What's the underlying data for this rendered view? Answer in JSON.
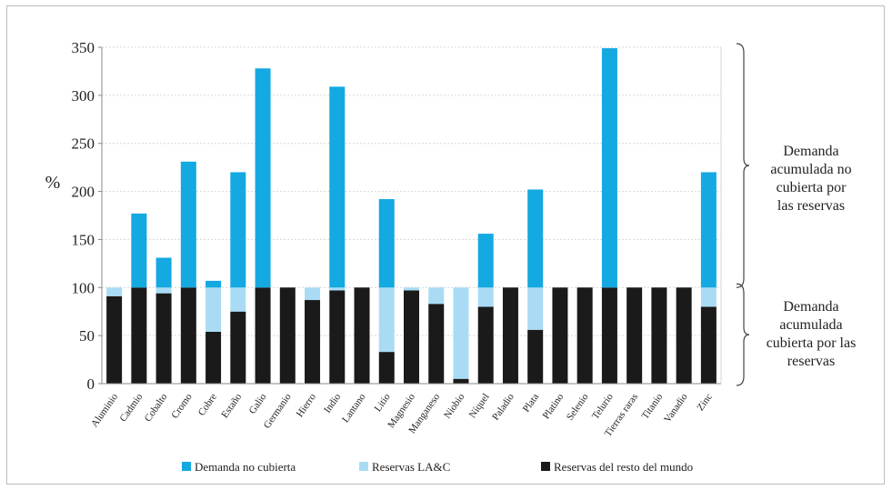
{
  "chart_data": {
    "type": "bar",
    "stacked": true,
    "ylabel": "%",
    "ylim": [
      0,
      350
    ],
    "yticks": [
      0,
      50,
      100,
      150,
      200,
      250,
      300,
      350
    ],
    "grid": true,
    "legend_position": "bottom",
    "categories": [
      "Aluminio",
      "Cadmio",
      "Cobalto",
      "Cromo",
      "Cobre",
      "Estaño",
      "Galio",
      "Germanio",
      "Hierro",
      "Indio",
      "Lantano",
      "Litio",
      "Magnesio",
      "Manganeso",
      "Niobio",
      "Níquel",
      "Paladio",
      "Plata",
      "Platino",
      "Selenio",
      "Telurio",
      "Tierras raras",
      "Titanio",
      "Vanadio",
      "Zinc"
    ],
    "series": [
      {
        "name": "Reservas del resto del mundo",
        "color": "#1a1a1a",
        "values": [
          91,
          100,
          94,
          100,
          54,
          75,
          100,
          100,
          87,
          97,
          100,
          33,
          97,
          83,
          5,
          80,
          100,
          56,
          100,
          100,
          100,
          100,
          100,
          100,
          80
        ]
      },
      {
        "name": "Reservas LA&C",
        "color": "#a9dcf4",
        "values": [
          9,
          0,
          6,
          0,
          46,
          25,
          0,
          0,
          13,
          3,
          0,
          67,
          3,
          17,
          95,
          20,
          0,
          44,
          0,
          0,
          0,
          0,
          0,
          0,
          20
        ]
      },
      {
        "name": "Demanda no cubierta",
        "color": "#14a9e1",
        "values": [
          0,
          77,
          31,
          131,
          7,
          120,
          228,
          0,
          0,
          209,
          0,
          92,
          0,
          0,
          0,
          56,
          0,
          102,
          0,
          0,
          249,
          0,
          0,
          0,
          120
        ]
      }
    ],
    "annotations": [
      {
        "text": "Demanda acumulada no cubierta por las reservas",
        "range": [
          100,
          350
        ]
      },
      {
        "text": "Demanda acumulada cubierta por las reservas",
        "range": [
          0,
          100
        ]
      }
    ],
    "legend_order": [
      "Demanda no cubierta",
      "Reservas LA&C",
      "Reservas del resto del mundo"
    ]
  },
  "annotation_lines": {
    "upper": [
      "Demanda",
      "acumulada no",
      "cubierta por",
      "las reservas"
    ],
    "lower": [
      "Demanda",
      "acumulada",
      "cubierta por las",
      "reservas"
    ]
  }
}
